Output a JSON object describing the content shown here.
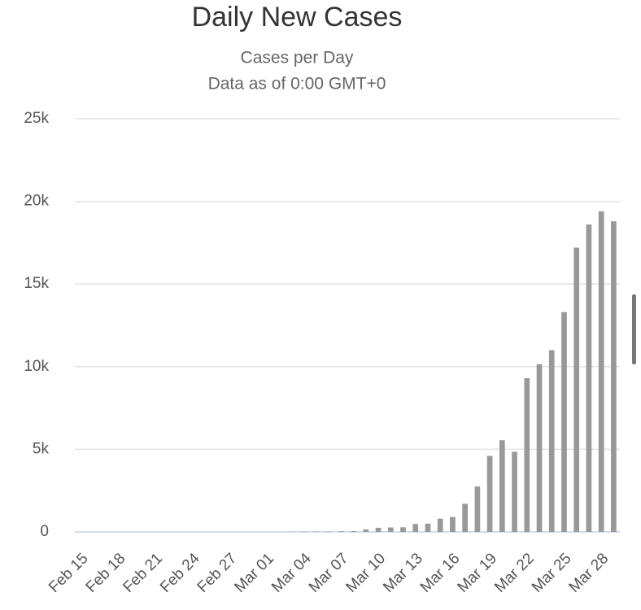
{
  "chart_data": {
    "type": "bar",
    "title": "Daily New Cases",
    "subtitle": "Cases per Day",
    "subtitle2": "Data as of 0:00 GMT+0",
    "categories": [
      "Feb 15",
      null,
      null,
      "Feb 18",
      null,
      null,
      "Feb 21",
      null,
      null,
      "Feb 24",
      null,
      null,
      "Feb 27",
      null,
      null,
      "Mar 01",
      null,
      null,
      "Mar 04",
      null,
      null,
      "Mar 07",
      null,
      null,
      "Mar 10",
      null,
      null,
      "Mar 13",
      null,
      null,
      "Mar 16",
      null,
      null,
      "Mar 19",
      null,
      null,
      "Mar 22",
      null,
      null,
      "Mar 25",
      null,
      null,
      "Mar 28",
      null
    ],
    "values": [
      0,
      0,
      0,
      0,
      0,
      0,
      0,
      0,
      0,
      0,
      0,
      0,
      0,
      0,
      0,
      2,
      5,
      10,
      20,
      20,
      25,
      40,
      50,
      150,
      250,
      270,
      280,
      480,
      500,
      800,
      900,
      1700,
      2750,
      4600,
      5550,
      4850,
      9300,
      10150,
      11000,
      13300,
      17200,
      18600,
      19400,
      18800
    ],
    "color": "#999999",
    "ylim": [
      0,
      25000
    ],
    "yticks": [
      {
        "value": 0,
        "label": "0"
      },
      {
        "value": 5000,
        "label": "5k"
      },
      {
        "value": 10000,
        "label": "10k"
      },
      {
        "value": 15000,
        "label": "15k"
      },
      {
        "value": 20000,
        "label": "20k"
      },
      {
        "value": 25000,
        "label": "25k"
      }
    ],
    "grid": true
  }
}
